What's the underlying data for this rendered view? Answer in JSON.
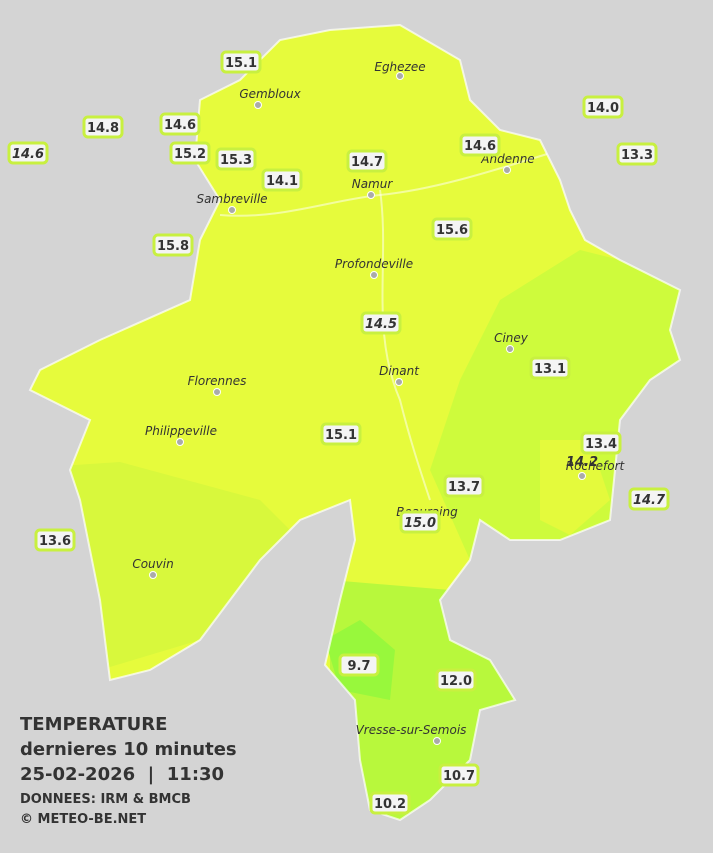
{
  "legend": {
    "title": "TEMPERATURE",
    "subtitle": "dernieres 10 minutes",
    "datetime": "25-02-2026  |  11:30",
    "source": "DONNEES: IRM & BMCB",
    "credit": "© METEO-BE.NET"
  },
  "cities": [
    "Eghezee",
    "Gembloux",
    "Andenne",
    "Namur",
    "Sambreville",
    "Profondeville",
    "Ciney",
    "Dinant",
    "Florennes",
    "Philippeville",
    "Rochefort",
    "Beauraing",
    "Couvin",
    "Vresse-sur-Semois"
  ],
  "stations": [
    {
      "label": "15.1",
      "italic": false
    },
    {
      "label": "14.8",
      "italic": false
    },
    {
      "label": "14.6",
      "italic": false
    },
    {
      "label": "14.6",
      "italic": true
    },
    {
      "label": "15.2",
      "italic": false
    },
    {
      "label": "15.3",
      "italic": false
    },
    {
      "label": "14.1",
      "italic": false
    },
    {
      "label": "14.7",
      "italic": false
    },
    {
      "label": "14.6",
      "italic": false
    },
    {
      "label": "14.0",
      "italic": false
    },
    {
      "label": "13.3",
      "italic": false
    },
    {
      "label": "15.8",
      "italic": false
    },
    {
      "label": "15.6",
      "italic": false
    },
    {
      "label": "14.5",
      "italic": true
    },
    {
      "label": "13.1",
      "italic": false
    },
    {
      "label": "15.1",
      "italic": false
    },
    {
      "label": "13.4",
      "italic": false
    },
    {
      "label": "14.2",
      "italic": true
    },
    {
      "label": "13.7",
      "italic": false
    },
    {
      "label": "15.0",
      "italic": true
    },
    {
      "label": "14.7",
      "italic": true
    },
    {
      "label": "13.6",
      "italic": false
    },
    {
      "label": "9.7",
      "italic": false
    },
    {
      "label": "12.0",
      "italic": false
    },
    {
      "label": "10.7",
      "italic": false
    },
    {
      "label": "10.2",
      "italic": false
    }
  ]
}
